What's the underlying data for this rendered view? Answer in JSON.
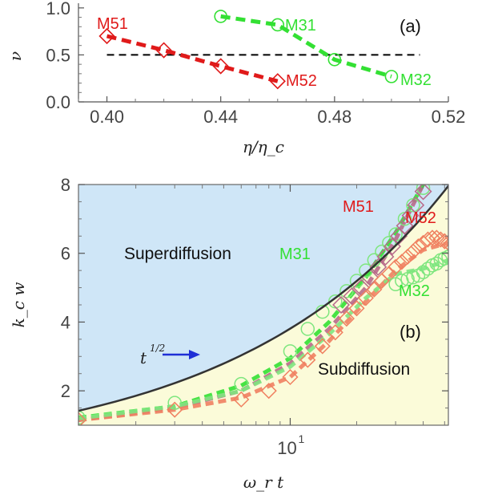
{
  "colors": {
    "red": "#e01a1a",
    "green": "#33e033",
    "salmon": "#f08060",
    "mauve": "#b86a8a",
    "lightgreen": "#7ee67e",
    "arrow": "#1f2fd6",
    "super_fill": "#cfe6f7",
    "sub_fill": "#fbfbd9",
    "curve": "#333333",
    "hline": "#000000"
  },
  "chart_data": [
    {
      "type": "line",
      "panel_label": "(a)",
      "xlabel": "η/η_c",
      "ylabel": "ν",
      "xlim": [
        0.39,
        0.52
      ],
      "ylim": [
        0.0,
        1.05
      ],
      "xticks": [
        0.4,
        0.44,
        0.48,
        0.52
      ],
      "xtick_labels": [
        "0.40",
        "0.44",
        "0.48",
        "0.52"
      ],
      "yticks": [
        0.0,
        0.5,
        1.0
      ],
      "ytick_labels": [
        "0.0",
        "0.5",
        "1.0"
      ],
      "reference_line": {
        "y": 0.5,
        "x_from": 0.4,
        "x_to": 0.51,
        "style": "dashed"
      },
      "series": [
        {
          "name": "M51",
          "marker": "diamond",
          "color": "red",
          "x": [
            0.4,
            0.42
          ],
          "y": [
            0.7,
            0.55
          ]
        },
        {
          "name": "M52",
          "marker": "diamond",
          "color": "red",
          "x": [
            0.44,
            0.46
          ],
          "y": [
            0.38,
            0.22
          ]
        },
        {
          "name": "M31",
          "marker": "circle",
          "color": "green",
          "x": [
            0.44,
            0.46
          ],
          "y": [
            0.91,
            0.82
          ]
        },
        {
          "name": "M32",
          "marker": "circle",
          "color": "green",
          "x": [
            0.48,
            0.5
          ],
          "y": [
            0.45,
            0.27
          ]
        }
      ],
      "series_segments": [
        {
          "color": "red",
          "x": [
            0.4,
            0.42,
            0.44,
            0.46
          ],
          "y": [
            0.7,
            0.55,
            0.38,
            0.22
          ]
        },
        {
          "color": "green",
          "x": [
            0.44,
            0.46,
            0.48,
            0.5
          ],
          "y": [
            0.91,
            0.82,
            0.45,
            0.27
          ]
        }
      ]
    },
    {
      "type": "scatter",
      "panel_label": "(b)",
      "xlabel": "ω_r t",
      "ylabel": "k_c w",
      "xscale": "log",
      "xlim": [
        1.1,
        52
      ],
      "ylim": [
        1.0,
        8.0
      ],
      "yticks": [
        2,
        4,
        6,
        8
      ],
      "ytick_labels": [
        "2",
        "4",
        "6",
        "8"
      ],
      "xticks_major": [
        10
      ],
      "xtick_major_labels": [
        "10"
      ],
      "xticks_minor": [
        2,
        3,
        4,
        5,
        6,
        7,
        8,
        9,
        20,
        30,
        40,
        50
      ],
      "regions": {
        "above": "Superdiffusion",
        "below": "Subdiffusion"
      },
      "boundary": {
        "label_base": "t",
        "label_exp": "1/2",
        "x": [
          1.1,
          52
        ],
        "y": [
          1.42,
          7.96
        ]
      },
      "fit_lines": [
        {
          "name": "M31",
          "color": "green",
          "x": [
            1.1,
            3,
            6,
            10,
            15,
            22,
            30,
            40
          ],
          "y": [
            1.22,
            1.55,
            2.15,
            2.95,
            4.0,
            5.3,
            6.6,
            8.0
          ]
        },
        {
          "name": "M51",
          "color": "mauve",
          "x": [
            1.1,
            3,
            6,
            10,
            15,
            22,
            30,
            40
          ],
          "y": [
            1.15,
            1.5,
            2.0,
            2.8,
            3.8,
            5.0,
            6.4,
            8.0
          ]
        },
        {
          "name": "M52",
          "color": "salmon",
          "x": [
            1.1,
            3,
            6,
            10,
            15,
            22,
            30,
            40,
            52
          ],
          "y": [
            1.15,
            1.45,
            1.8,
            2.4,
            3.45,
            4.6,
            5.5,
            6.1,
            6.3
          ]
        },
        {
          "name": "M32",
          "color": "lightgreen",
          "x": [
            1.1,
            3,
            6,
            10,
            15,
            22,
            30,
            40,
            52
          ],
          "y": [
            1.2,
            1.55,
            2.0,
            2.7,
            3.65,
            4.7,
            5.4,
            5.55,
            5.8
          ]
        }
      ],
      "series": [
        {
          "name": "M31",
          "marker": "circle",
          "color": "lightgreen",
          "x": [
            1.1,
            3,
            6,
            10,
            12,
            14,
            16,
            18,
            20,
            22,
            24,
            26,
            28,
            30,
            33,
            36,
            40
          ],
          "y": [
            1.22,
            1.65,
            2.2,
            3.15,
            3.8,
            4.3,
            4.6,
            4.9,
            5.2,
            5.5,
            5.8,
            6.05,
            6.3,
            6.55,
            7.0,
            7.4,
            7.9
          ]
        },
        {
          "name": "M51",
          "marker": "square",
          "color": "mauve",
          "x": [
            17,
            19,
            21,
            23,
            25,
            27,
            29,
            31,
            33,
            35,
            37,
            40
          ],
          "y": [
            4.5,
            4.75,
            5.0,
            5.3,
            5.6,
            5.9,
            6.2,
            6.5,
            6.8,
            7.1,
            7.4,
            7.8
          ]
        },
        {
          "name": "M52",
          "marker": "diamond",
          "color": "salmon",
          "x": [
            1.1,
            3,
            6,
            8,
            10,
            12,
            14,
            16,
            18,
            20,
            22,
            24,
            26,
            28,
            30,
            32,
            34,
            36,
            38,
            40,
            42,
            44,
            46,
            48,
            50,
            52
          ],
          "y": [
            1.15,
            1.45,
            1.75,
            2.0,
            2.4,
            2.9,
            3.3,
            3.7,
            4.1,
            4.4,
            4.7,
            4.95,
            5.2,
            5.4,
            5.6,
            5.75,
            5.9,
            6.05,
            6.2,
            6.3,
            6.4,
            6.45,
            6.45,
            6.4,
            6.35,
            6.3
          ]
        },
        {
          "name": "M32",
          "marker": "circle",
          "color": "lightgreen",
          "x": [
            30,
            32,
            34,
            36,
            38,
            40,
            42,
            44,
            46,
            48,
            50,
            52
          ],
          "y": [
            5.1,
            5.2,
            5.25,
            5.3,
            5.35,
            5.45,
            5.55,
            5.65,
            5.7,
            5.8,
            5.85,
            5.9
          ]
        }
      ],
      "series_labels": [
        {
          "name": "M51",
          "color": "red"
        },
        {
          "name": "M52",
          "color": "red"
        },
        {
          "name": "M31",
          "color": "green"
        },
        {
          "name": "M32",
          "color": "green"
        }
      ]
    }
  ]
}
